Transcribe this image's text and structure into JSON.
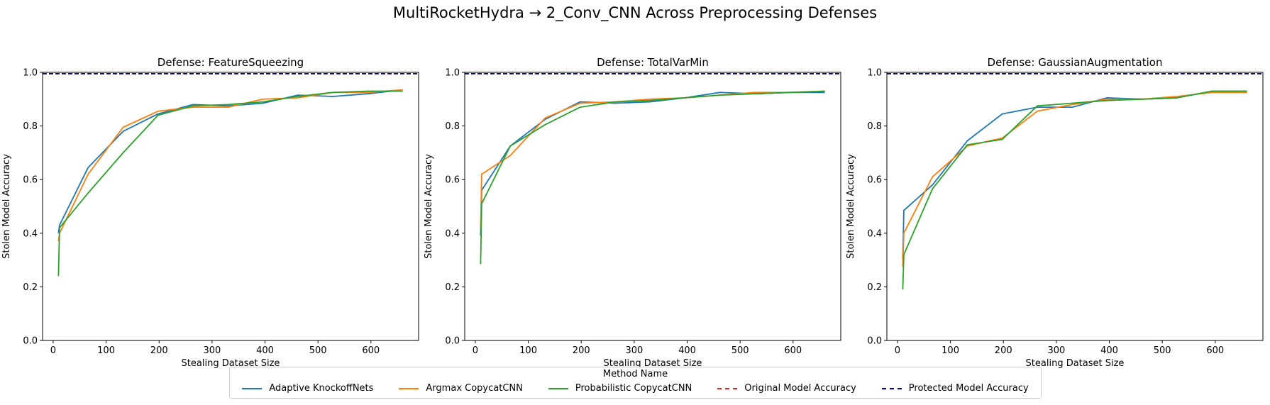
{
  "title": "MultiRocketHydra → 2_Conv_CNN Across Preprocessing Defenses",
  "legend": {
    "title": "Method Name",
    "items": [
      {
        "label": "Adaptive KnockoffNets",
        "color": "#1f77b4",
        "style": "solid"
      },
      {
        "label": "Argmax CopycatCNN",
        "color": "#ff7f0e",
        "style": "solid"
      },
      {
        "label": "Probabilistic CopycatCNN",
        "color": "#2ca02c",
        "style": "solid"
      },
      {
        "label": "Original Model Accuracy",
        "color": "#d62728",
        "style": "dashed"
      },
      {
        "label": "Protected Model Accuracy",
        "color": "#00008b",
        "style": "dashed"
      }
    ]
  },
  "chart_data": [
    {
      "type": "line",
      "title": "Defense: FeatureSqueezing",
      "xlabel": "Stealing Dataset Size",
      "ylabel": "Stolen Model Accuracy",
      "xlim": [
        -20,
        690
      ],
      "ylim": [
        0,
        1
      ],
      "xticks": [
        0,
        100,
        200,
        300,
        400,
        500,
        600
      ],
      "yticks": [
        "0.0",
        "0.2",
        "0.4",
        "0.6",
        "0.8",
        "1.0"
      ],
      "hlines": [
        {
          "name": "Original Model Accuracy",
          "y": 0.995,
          "color": "#d62728"
        },
        {
          "name": "Protected Model Accuracy",
          "y": 0.995,
          "color": "#00008b"
        }
      ],
      "series": [
        {
          "name": "Adaptive KnockoffNets",
          "color": "#1f77b4",
          "x": [
            10,
            12,
            66,
            132,
            198,
            264,
            330,
            396,
            462,
            528,
            594,
            660
          ],
          "y": [
            0.4,
            0.43,
            0.645,
            0.78,
            0.845,
            0.88,
            0.875,
            0.885,
            0.915,
            0.91,
            0.92,
            0.935
          ]
        },
        {
          "name": "Argmax CopycatCNN",
          "color": "#ff7f0e",
          "x": [
            10,
            12,
            66,
            132,
            198,
            264,
            330,
            396,
            462,
            528,
            594,
            660
          ],
          "y": [
            0.37,
            0.4,
            0.62,
            0.795,
            0.855,
            0.87,
            0.87,
            0.9,
            0.905,
            0.925,
            0.925,
            0.935
          ]
        },
        {
          "name": "Probabilistic CopycatCNN",
          "color": "#2ca02c",
          "x": [
            10,
            12,
            66,
            132,
            198,
            264,
            330,
            396,
            462,
            528,
            594,
            660
          ],
          "y": [
            0.24,
            0.42,
            0.55,
            0.7,
            0.84,
            0.875,
            0.88,
            0.89,
            0.91,
            0.925,
            0.93,
            0.93
          ]
        }
      ]
    },
    {
      "type": "line",
      "title": "Defense: TotalVarMin",
      "xlabel": "Stealing Dataset Size",
      "ylabel": "Stolen Model Accuracy",
      "xlim": [
        -20,
        690
      ],
      "ylim": [
        0,
        1
      ],
      "xticks": [
        0,
        100,
        200,
        300,
        400,
        500,
        600
      ],
      "yticks": [
        "0.0",
        "0.2",
        "0.4",
        "0.6",
        "0.8",
        "1.0"
      ],
      "hlines": [
        {
          "name": "Original Model Accuracy",
          "y": 0.995,
          "color": "#d62728"
        },
        {
          "name": "Protected Model Accuracy",
          "y": 0.995,
          "color": "#00008b"
        }
      ],
      "series": [
        {
          "name": "Adaptive KnockoffNets",
          "color": "#1f77b4",
          "x": [
            10,
            12,
            66,
            132,
            198,
            264,
            330,
            396,
            462,
            528,
            594,
            660
          ],
          "y": [
            0.39,
            0.56,
            0.725,
            0.825,
            0.89,
            0.885,
            0.89,
            0.905,
            0.925,
            0.92,
            0.925,
            0.925
          ]
        },
        {
          "name": "Argmax CopycatCNN",
          "color": "#ff7f0e",
          "x": [
            10,
            12,
            66,
            132,
            198,
            264,
            330,
            396,
            462,
            528,
            594,
            660
          ],
          "y": [
            0.42,
            0.62,
            0.69,
            0.83,
            0.885,
            0.89,
            0.9,
            0.905,
            0.915,
            0.925,
            0.925,
            0.93
          ]
        },
        {
          "name": "Probabilistic CopycatCNN",
          "color": "#2ca02c",
          "x": [
            10,
            12,
            66,
            132,
            198,
            264,
            330,
            396,
            462,
            528,
            594,
            660
          ],
          "y": [
            0.285,
            0.51,
            0.725,
            0.805,
            0.87,
            0.89,
            0.895,
            0.905,
            0.915,
            0.92,
            0.925,
            0.93
          ]
        }
      ]
    },
    {
      "type": "line",
      "title": "Defense: GaussianAugmentation",
      "xlabel": "Stealing Dataset Size",
      "ylabel": "Stolen Model Accuracy",
      "xlim": [
        -20,
        690
      ],
      "ylim": [
        0,
        1
      ],
      "xticks": [
        0,
        100,
        200,
        300,
        400,
        500,
        600
      ],
      "yticks": [
        "0.0",
        "0.2",
        "0.4",
        "0.6",
        "0.8",
        "1.0"
      ],
      "hlines": [
        {
          "name": "Original Model Accuracy",
          "y": 0.995,
          "color": "#d62728"
        },
        {
          "name": "Protected Model Accuracy",
          "y": 0.995,
          "color": "#00008b"
        }
      ],
      "series": [
        {
          "name": "Adaptive KnockoffNets",
          "color": "#1f77b4",
          "x": [
            10,
            12,
            66,
            132,
            198,
            264,
            330,
            396,
            462,
            528,
            594,
            660
          ],
          "y": [
            0.3,
            0.485,
            0.58,
            0.745,
            0.845,
            0.87,
            0.87,
            0.905,
            0.9,
            0.905,
            0.93,
            0.93
          ]
        },
        {
          "name": "Argmax CopycatCNN",
          "color": "#ff7f0e",
          "x": [
            10,
            12,
            66,
            132,
            198,
            264,
            330,
            396,
            462,
            528,
            594,
            660
          ],
          "y": [
            0.275,
            0.4,
            0.61,
            0.725,
            0.755,
            0.855,
            0.88,
            0.9,
            0.9,
            0.91,
            0.925,
            0.925
          ]
        },
        {
          "name": "Probabilistic CopycatCNN",
          "color": "#2ca02c",
          "x": [
            10,
            12,
            66,
            132,
            198,
            264,
            330,
            396,
            462,
            528,
            594,
            660
          ],
          "y": [
            0.19,
            0.32,
            0.565,
            0.73,
            0.75,
            0.875,
            0.885,
            0.895,
            0.9,
            0.905,
            0.93,
            0.93
          ]
        }
      ]
    }
  ]
}
